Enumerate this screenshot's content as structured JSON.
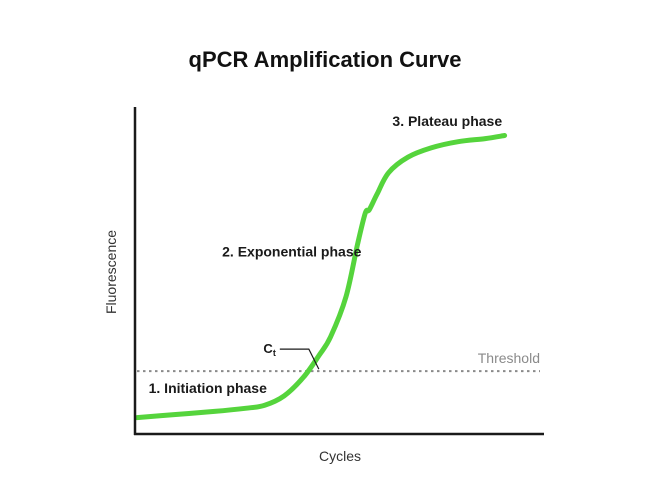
{
  "chart_data": {
    "type": "line",
    "title": "qPCR Amplification Curve",
    "xlabel": "Cycles",
    "ylabel": "Fluorescence",
    "grid": false,
    "legend": "none",
    "xlim": [
      0,
      100
    ],
    "ylim": [
      0,
      100
    ],
    "series": [
      {
        "color": "#55d43c",
        "x": [
          0,
          10,
          20,
          28,
          33,
          38,
          43,
          47,
          50,
          54,
          57,
          59,
          60,
          62,
          65,
          70,
          76,
          83,
          90,
          95
        ],
        "y": [
          4,
          5,
          6,
          7,
          8,
          11,
          17,
          24,
          30,
          43,
          60,
          70,
          71,
          76,
          83,
          88,
          91,
          93,
          94,
          95
        ]
      }
    ],
    "threshold": {
      "y": 19,
      "label": "Threshold",
      "color": "#8a8a8a"
    },
    "ct_marker": {
      "x": 47.5,
      "y": 19,
      "label": "C",
      "subscript": "t"
    },
    "annotations": [
      {
        "text": "1. Initiation phase",
        "x": 3,
        "y": 12
      },
      {
        "text": "2. Exponential phase",
        "x": 22,
        "y": 56
      },
      {
        "text": "3. Plateau phase",
        "x": 66,
        "y": 98
      }
    ]
  }
}
